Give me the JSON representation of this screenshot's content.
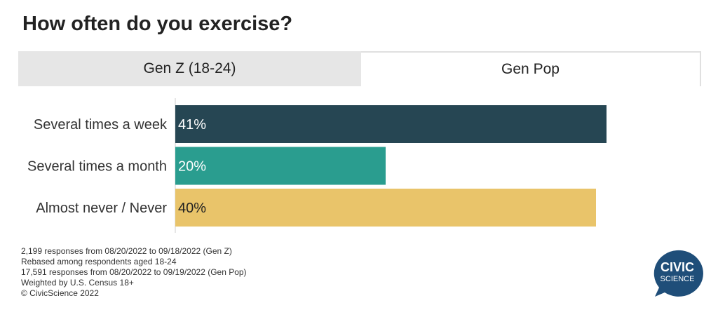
{
  "title": "How often do you exercise?",
  "tabs": [
    {
      "label": "Gen Z (18-24)",
      "active": false
    },
    {
      "label": "Gen Pop",
      "active": true
    }
  ],
  "chart_data": {
    "type": "bar",
    "orientation": "horizontal",
    "categories": [
      "Several times a week",
      "Several times a month",
      "Almost never / Never"
    ],
    "values": [
      41,
      20,
      40
    ],
    "data_labels": [
      "41%",
      "20%",
      "40%"
    ],
    "colors": [
      "#264653",
      "#2a9d8f",
      "#e9c46a"
    ],
    "label_colors": [
      "#ffffff",
      "#ffffff",
      "#222222"
    ],
    "xlim": [
      0,
      50
    ],
    "grid": false,
    "legend": "none"
  },
  "footnotes": [
    "2,199 responses from 08/20/2022 to 09/18/2022 (Gen Z)",
    "Rebased among respondents aged 18-24",
    "17,591 responses from 08/20/2022 to 09/19/2022 (Gen Pop)",
    "Weighted by U.S. Census 18+",
    "© CivicScience 2022"
  ],
  "logo": {
    "line1": "CIVIC",
    "line2": "SCIENCE",
    "color": "#1f4e79"
  }
}
